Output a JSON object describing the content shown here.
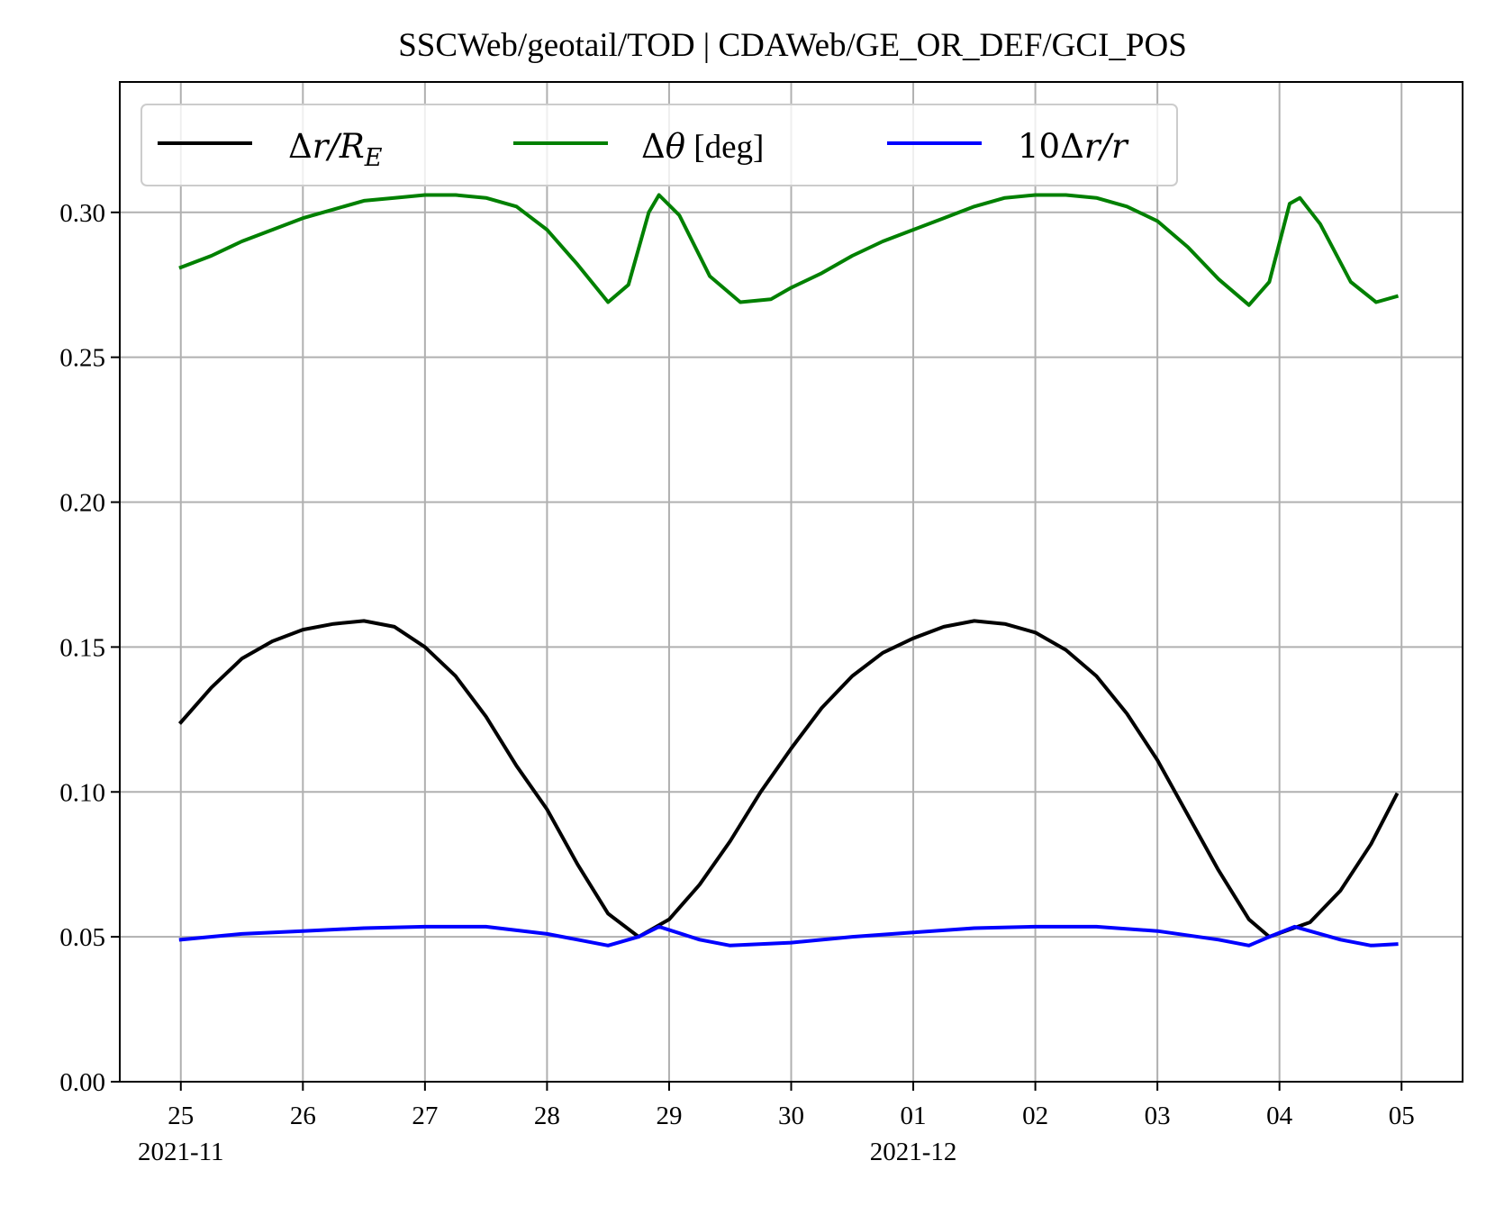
{
  "chart_data": {
    "type": "line",
    "title": "SSCWeb/geotail/TOD | CDAWeb/GE_OR_DEF/GCI_POS",
    "xlabel": "",
    "ylabel": "",
    "xlim": [
      "2021-11-24T12:00",
      "2021-12-05T12:00"
    ],
    "ylim": [
      0,
      0.345
    ],
    "grid": true,
    "legend_placement": "top, 3 columns",
    "x_ticks": [
      "2021-11-25",
      "2021-11-26",
      "2021-11-27",
      "2021-11-28",
      "2021-11-29",
      "2021-11-30",
      "2021-12-01",
      "2021-12-02",
      "2021-12-03",
      "2021-12-04",
      "2021-12-05"
    ],
    "x_tick_labels": [
      "25",
      "26",
      "27",
      "28",
      "29",
      "30",
      "01",
      "02",
      "03",
      "04",
      "05"
    ],
    "x_tick_sublabels": [
      {
        "at": "2021-11-25",
        "text": "2021-11"
      },
      {
        "at": "2021-12-01",
        "text": "2021-12"
      }
    ],
    "y_ticks": [
      0.0,
      0.05,
      0.1,
      0.15,
      0.2,
      0.25,
      0.3
    ],
    "y_tick_labels": [
      "0.00",
      "0.05",
      "0.10",
      "0.15",
      "0.20",
      "0.25",
      "0.30"
    ],
    "series": [
      {
        "name": "Δr/R_E",
        "color": "#000000",
        "points": [
          [
            "2021-11-25T00:00",
            0.124
          ],
          [
            "2021-11-25T06:00",
            0.136
          ],
          [
            "2021-11-25T12:00",
            0.146
          ],
          [
            "2021-11-25T18:00",
            0.152
          ],
          [
            "2021-11-26T00:00",
            0.156
          ],
          [
            "2021-11-26T06:00",
            0.158
          ],
          [
            "2021-11-26T12:00",
            0.159
          ],
          [
            "2021-11-26T18:00",
            0.157
          ],
          [
            "2021-11-27T00:00",
            0.15
          ],
          [
            "2021-11-27T06:00",
            0.14
          ],
          [
            "2021-11-27T12:00",
            0.126
          ],
          [
            "2021-11-27T18:00",
            0.109
          ],
          [
            "2021-11-28T00:00",
            0.094
          ],
          [
            "2021-11-28T06:00",
            0.075
          ],
          [
            "2021-11-28T12:00",
            0.058
          ],
          [
            "2021-11-28T18:00",
            0.05
          ],
          [
            "2021-11-29T00:00",
            0.056
          ],
          [
            "2021-11-29T06:00",
            0.068
          ],
          [
            "2021-11-29T12:00",
            0.083
          ],
          [
            "2021-11-29T18:00",
            0.1
          ],
          [
            "2021-11-30T00:00",
            0.115
          ],
          [
            "2021-11-30T06:00",
            0.129
          ],
          [
            "2021-11-30T12:00",
            0.14
          ],
          [
            "2021-11-30T18:00",
            0.148
          ],
          [
            "2021-12-01T00:00",
            0.153
          ],
          [
            "2021-12-01T06:00",
            0.157
          ],
          [
            "2021-12-01T12:00",
            0.159
          ],
          [
            "2021-12-01T18:00",
            0.158
          ],
          [
            "2021-12-02T00:00",
            0.155
          ],
          [
            "2021-12-02T06:00",
            0.149
          ],
          [
            "2021-12-02T12:00",
            0.14
          ],
          [
            "2021-12-02T18:00",
            0.127
          ],
          [
            "2021-12-03T00:00",
            0.111
          ],
          [
            "2021-12-03T06:00",
            0.092
          ],
          [
            "2021-12-03T12:00",
            0.073
          ],
          [
            "2021-12-03T18:00",
            0.056
          ],
          [
            "2021-12-03T22:00",
            0.05
          ],
          [
            "2021-12-04T06:00",
            0.055
          ],
          [
            "2021-12-04T12:00",
            0.066
          ],
          [
            "2021-12-04T18:00",
            0.082
          ],
          [
            "2021-12-04T23:00",
            0.099
          ]
        ]
      },
      {
        "name": "Δθ [deg]",
        "color": "#008000",
        "points": [
          [
            "2021-11-25T00:00",
            0.281
          ],
          [
            "2021-11-25T06:00",
            0.285
          ],
          [
            "2021-11-25T12:00",
            0.29
          ],
          [
            "2021-11-25T18:00",
            0.294
          ],
          [
            "2021-11-26T00:00",
            0.298
          ],
          [
            "2021-11-26T06:00",
            0.301
          ],
          [
            "2021-11-26T12:00",
            0.304
          ],
          [
            "2021-11-26T18:00",
            0.305
          ],
          [
            "2021-11-27T00:00",
            0.306
          ],
          [
            "2021-11-27T06:00",
            0.306
          ],
          [
            "2021-11-27T12:00",
            0.305
          ],
          [
            "2021-11-27T18:00",
            0.302
          ],
          [
            "2021-11-28T00:00",
            0.294
          ],
          [
            "2021-11-28T06:00",
            0.282
          ],
          [
            "2021-11-28T12:00",
            0.269
          ],
          [
            "2021-11-28T16:00",
            0.275
          ],
          [
            "2021-11-28T20:00",
            0.3
          ],
          [
            "2021-11-28T22:00",
            0.306
          ],
          [
            "2021-11-29T02:00",
            0.299
          ],
          [
            "2021-11-29T08:00",
            0.278
          ],
          [
            "2021-11-29T14:00",
            0.269
          ],
          [
            "2021-11-29T20:00",
            0.27
          ],
          [
            "2021-11-30T00:00",
            0.274
          ],
          [
            "2021-11-30T06:00",
            0.279
          ],
          [
            "2021-11-30T12:00",
            0.285
          ],
          [
            "2021-11-30T18:00",
            0.29
          ],
          [
            "2021-12-01T00:00",
            0.294
          ],
          [
            "2021-12-01T06:00",
            0.298
          ],
          [
            "2021-12-01T12:00",
            0.302
          ],
          [
            "2021-12-01T18:00",
            0.305
          ],
          [
            "2021-12-02T00:00",
            0.306
          ],
          [
            "2021-12-02T06:00",
            0.306
          ],
          [
            "2021-12-02T12:00",
            0.305
          ],
          [
            "2021-12-02T18:00",
            0.302
          ],
          [
            "2021-12-03T00:00",
            0.297
          ],
          [
            "2021-12-03T06:00",
            0.288
          ],
          [
            "2021-12-03T12:00",
            0.277
          ],
          [
            "2021-12-03T18:00",
            0.268
          ],
          [
            "2021-12-03T22:00",
            0.276
          ],
          [
            "2021-12-04T02:00",
            0.303
          ],
          [
            "2021-12-04T04:00",
            0.305
          ],
          [
            "2021-12-04T08:00",
            0.296
          ],
          [
            "2021-12-04T14:00",
            0.276
          ],
          [
            "2021-12-04T19:00",
            0.269
          ],
          [
            "2021-12-04T23:00",
            0.271
          ]
        ]
      },
      {
        "name": "10Δr/r",
        "color": "#0000ff",
        "points": [
          [
            "2021-11-25T00:00",
            0.049
          ],
          [
            "2021-11-25T12:00",
            0.051
          ],
          [
            "2021-11-26T00:00",
            0.052
          ],
          [
            "2021-11-26T12:00",
            0.053
          ],
          [
            "2021-11-27T00:00",
            0.0535
          ],
          [
            "2021-11-27T12:00",
            0.0535
          ],
          [
            "2021-11-28T00:00",
            0.051
          ],
          [
            "2021-11-28T12:00",
            0.047
          ],
          [
            "2021-11-28T18:00",
            0.05
          ],
          [
            "2021-11-28T22:00",
            0.0535
          ],
          [
            "2021-11-29T06:00",
            0.049
          ],
          [
            "2021-11-29T12:00",
            0.047
          ],
          [
            "2021-11-30T00:00",
            0.048
          ],
          [
            "2021-11-30T12:00",
            0.05
          ],
          [
            "2021-12-01T00:00",
            0.0515
          ],
          [
            "2021-12-01T12:00",
            0.053
          ],
          [
            "2021-12-02T00:00",
            0.0535
          ],
          [
            "2021-12-02T12:00",
            0.0535
          ],
          [
            "2021-12-03T00:00",
            0.052
          ],
          [
            "2021-12-03T12:00",
            0.049
          ],
          [
            "2021-12-03T18:00",
            0.047
          ],
          [
            "2021-12-03T22:00",
            0.05
          ],
          [
            "2021-12-04T03:00",
            0.0535
          ],
          [
            "2021-12-04T12:00",
            0.049
          ],
          [
            "2021-12-04T18:00",
            0.047
          ],
          [
            "2021-12-04T23:00",
            0.0475
          ]
        ]
      }
    ]
  }
}
